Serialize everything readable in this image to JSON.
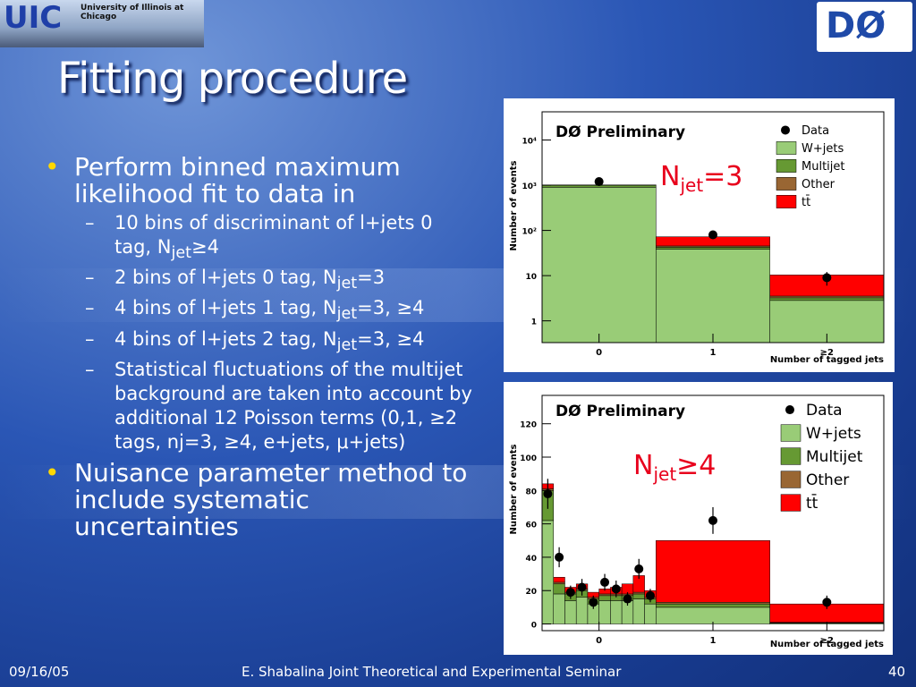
{
  "header": {
    "logo_left": "UIC",
    "logo_left_caption": "University of Illinois at Chicago",
    "logo_right": "DØ"
  },
  "title": "Fitting procedure",
  "bullets": [
    {
      "text": "Perform binned maximum likelihood fit to data in",
      "sub_items": [
        [
          "10 bins of discriminant of l+jets 0 tag, N",
          "jet",
          "≥4"
        ],
        [
          "2 bins of l+jets 0 tag, N",
          "jet",
          "=3"
        ],
        [
          "4 bins of l+jets 1 tag, N",
          "jet",
          "=3, ≥4"
        ],
        [
          "4 bins of l+jets 2 tag, N",
          "jet",
          "=3, ≥4"
        ],
        [
          "Statistical fluctuations of the multijet background are taken into account by additional 12 Poisson terms (0,1, ≥2 tags, nj=3, ≥4, e+jets, μ+jets)"
        ]
      ]
    },
    {
      "text": "Nuisance parameter method to include systematic uncertainties"
    }
  ],
  "footer": {
    "date": "09/16/05",
    "center": "E. Shabalina Joint Theoretical and Experimental Seminar",
    "page": "40"
  },
  "chart_data": [
    {
      "type": "histogram",
      "title": "DØ Preliminary",
      "annotation": [
        "N",
        "jet",
        "=3"
      ],
      "ylabel": "Number of events",
      "xlabel": "Number of tagged jets",
      "log_y": true,
      "bins": [
        -0.5,
        0.5,
        1.5,
        2.5
      ],
      "xlim": [
        -0.5,
        2.5
      ],
      "xticks": [
        0,
        1,
        {
          "value": 2,
          "label": "≥2"
        }
      ],
      "ylim": [
        0.33,
        42000
      ],
      "yticks": [
        1,
        10,
        {
          "value": 100,
          "label": "10²"
        },
        {
          "value": 1000,
          "label": "10³"
        },
        {
          "value": 10000,
          "label": "10⁴"
        }
      ],
      "data": {
        "name": "Data",
        "values": [
          1200,
          80,
          9
        ],
        "errors": [
          35,
          9,
          3
        ]
      },
      "series": [
        {
          "name": "W+jets",
          "color": "#99cc77",
          "values": [
            900,
            38,
            2.5
          ]
        },
        {
          "name": "Multijet",
          "color": "#669933",
          "values": [
            100,
            4,
            0.4
          ]
        },
        {
          "name": "Other",
          "color": "#996633",
          "values": [
            8,
            3,
            0.3
          ]
        },
        {
          "name": "tt̄",
          "color": "#ff0000",
          "values": [
            6,
            27,
            6.8
          ]
        }
      ],
      "legend": "upper right"
    },
    {
      "type": "histogram",
      "title": "DØ Preliminary",
      "annotation": [
        "N",
        "jet",
        "≥4"
      ],
      "ylabel": "Number of events",
      "xlabel": "Number of tagged jets",
      "log_y": false,
      "bins": [
        -0.5,
        -0.4,
        -0.3,
        -0.2,
        -0.1,
        0,
        0.1,
        0.2,
        0.3,
        0.4,
        0.5,
        1.5,
        2.5
      ],
      "xlim": [
        -0.5,
        2.5
      ],
      "xticks": [
        0,
        1,
        {
          "value": 2,
          "label": "≥2"
        }
      ],
      "ylim": [
        -4,
        137
      ],
      "yticks": [
        0,
        20,
        40,
        60,
        80,
        100,
        120
      ],
      "data": {
        "name": "Data",
        "values": [
          78,
          40,
          19,
          22,
          13,
          25,
          21,
          15,
          33,
          17,
          62,
          13
        ],
        "errors": [
          9,
          6,
          4,
          5,
          4,
          5,
          5,
          4,
          6,
          4,
          8,
          4
        ]
      },
      "series": [
        {
          "name": "W+jets",
          "color": "#99cc77",
          "values": [
            62,
            18,
            14,
            16,
            12,
            14,
            14,
            14,
            15,
            12,
            10,
            0.5
          ]
        },
        {
          "name": "Multijet",
          "color": "#669933",
          "values": [
            18,
            6,
            4,
            4,
            3,
            3,
            3,
            3,
            3,
            3,
            2,
            0.3
          ]
        },
        {
          "name": "Other",
          "color": "#996633",
          "values": [
            1,
            1,
            1,
            1,
            1,
            1,
            1,
            1,
            1,
            1,
            1,
            0.2
          ]
        },
        {
          "name": "tt̄",
          "color": "#ff0000",
          "values": [
            3,
            3,
            3,
            3,
            3,
            3,
            4,
            6,
            10,
            4,
            37,
            11
          ]
        }
      ],
      "legend": "upper right"
    }
  ]
}
